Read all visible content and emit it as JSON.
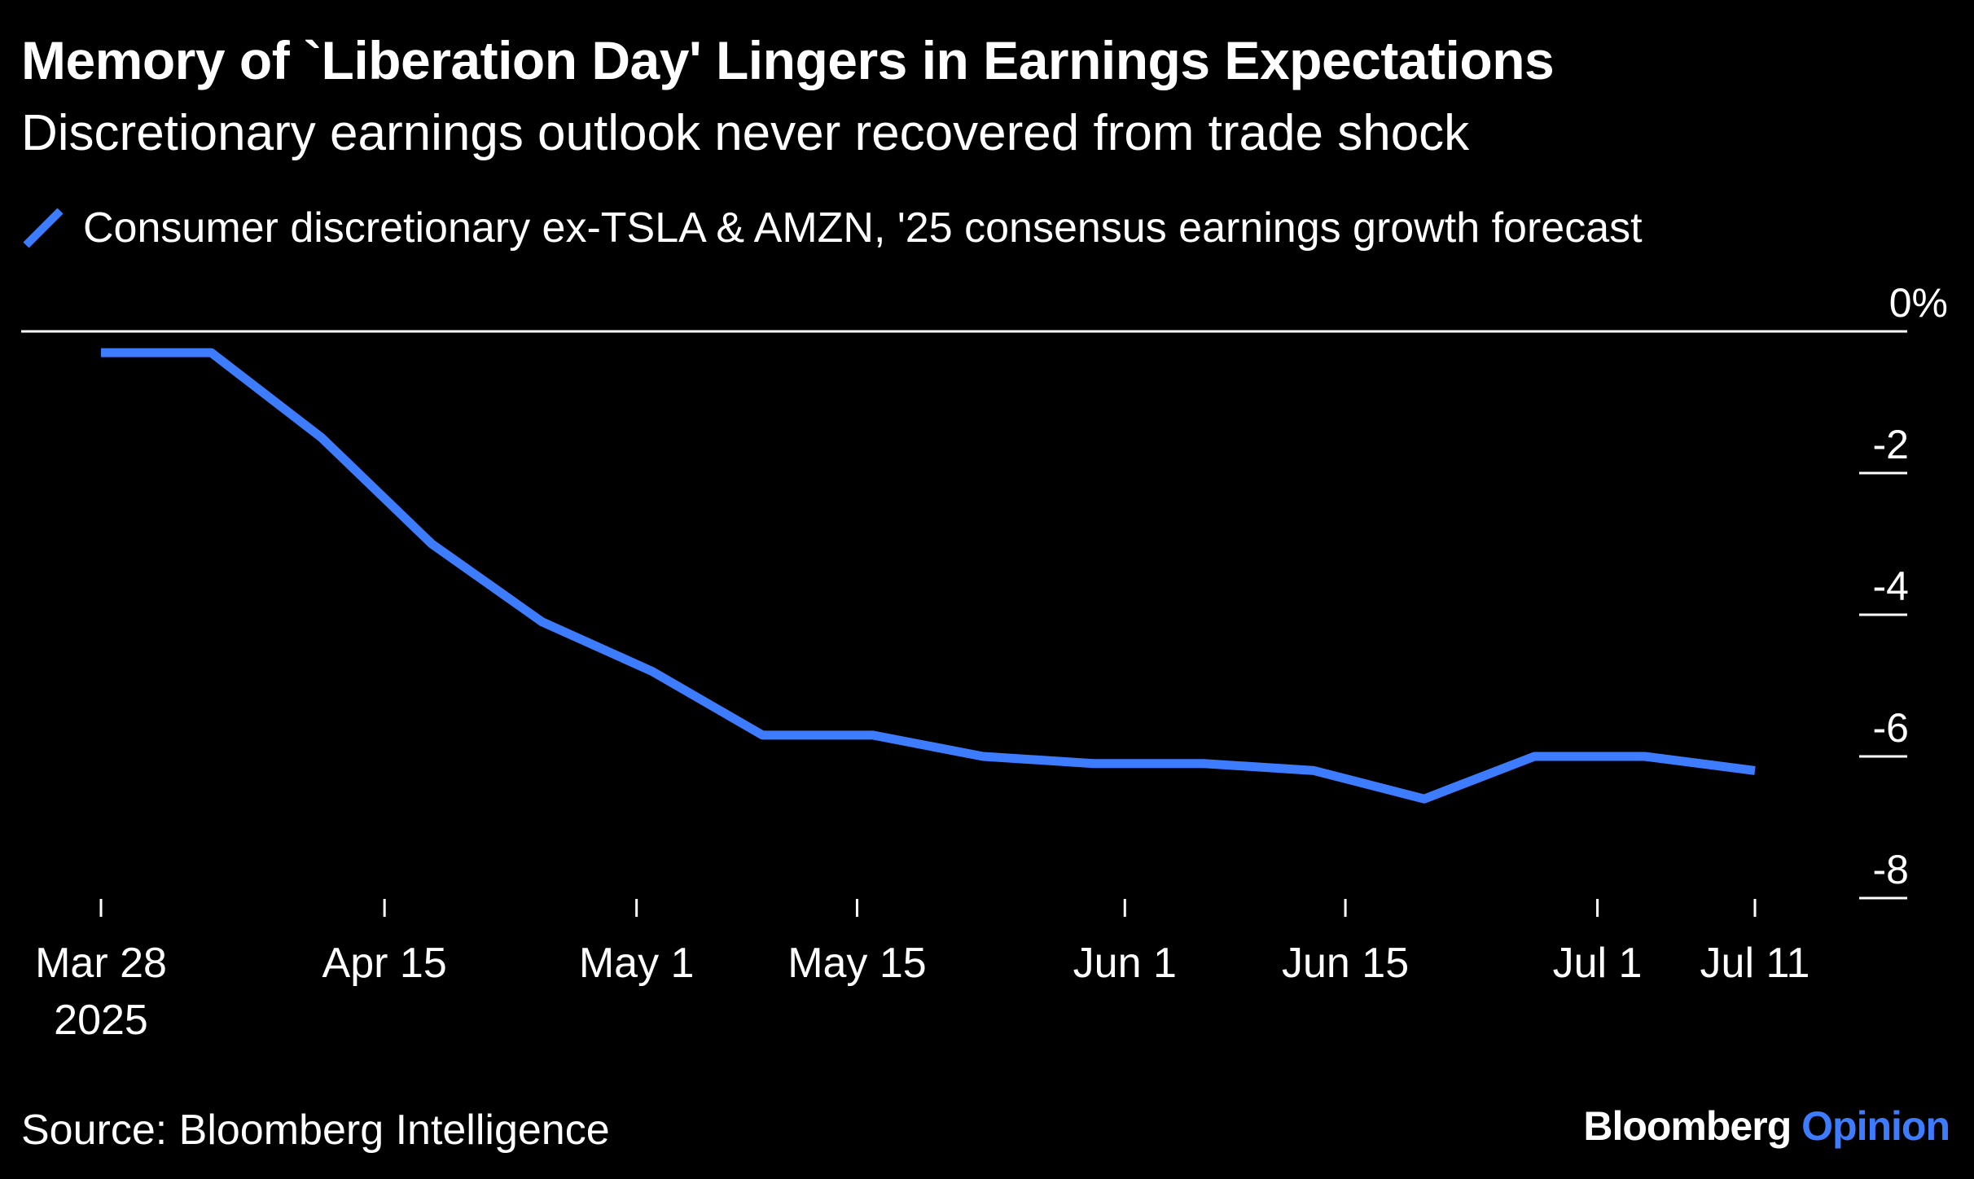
{
  "header": {
    "title": "Memory of `Liberation Day' Lingers in Earnings Expectations",
    "subtitle": "Discretionary earnings outlook never recovered from trade shock"
  },
  "footer": {
    "source": "Source: Bloomberg Intelligence",
    "brand_primary": "Bloomberg",
    "brand_secondary": "Opinion"
  },
  "colors": {
    "background": "#000000",
    "series": "#3d7cff",
    "text": "#ffffff"
  },
  "chart_data": {
    "type": "line",
    "title": "Memory of `Liberation Day' Lingers in Earnings Expectations",
    "subtitle": "Discretionary earnings outlook never recovered from trade shock",
    "xlabel": "",
    "ylabel": "",
    "legend_placement": "top-left",
    "grid": false,
    "x_tick_labels": [
      {
        "date": "2025-03-28",
        "label": "Mar 28",
        "sublabel": "2025"
      },
      {
        "date": "2025-04-15",
        "label": "Apr 15",
        "sublabel": ""
      },
      {
        "date": "2025-05-01",
        "label": "May 1",
        "sublabel": ""
      },
      {
        "date": "2025-05-15",
        "label": "May 15",
        "sublabel": ""
      },
      {
        "date": "2025-06-01",
        "label": "Jun 1",
        "sublabel": ""
      },
      {
        "date": "2025-06-15",
        "label": "Jun 15",
        "sublabel": ""
      },
      {
        "date": "2025-07-01",
        "label": "Jul 1",
        "sublabel": ""
      },
      {
        "date": "2025-07-11",
        "label": "Jul 11",
        "sublabel": ""
      }
    ],
    "xlim": [
      "2025-03-28",
      "2025-07-11"
    ],
    "y_ticks": [
      {
        "value": 0,
        "label": "0%"
      },
      {
        "value": -2,
        "label": "-2"
      },
      {
        "value": -4,
        "label": "-4"
      },
      {
        "value": -6,
        "label": "-6"
      },
      {
        "value": -8,
        "label": "-8"
      }
    ],
    "ylim": [
      -8,
      0
    ],
    "series": [
      {
        "name": "Consumer discretionary ex-TSLA & AMZN, '25 consensus earnings growth forecast",
        "color": "#3d7cff",
        "points": [
          {
            "x": "2025-03-28",
            "y": -0.3
          },
          {
            "x": "2025-04-04",
            "y": -0.3
          },
          {
            "x": "2025-04-11",
            "y": -1.5
          },
          {
            "x": "2025-04-18",
            "y": -3.0
          },
          {
            "x": "2025-04-25",
            "y": -4.1
          },
          {
            "x": "2025-05-02",
            "y": -4.8
          },
          {
            "x": "2025-05-09",
            "y": -5.7
          },
          {
            "x": "2025-05-16",
            "y": -5.7
          },
          {
            "x": "2025-05-23",
            "y": -6.0
          },
          {
            "x": "2025-05-30",
            "y": -6.1
          },
          {
            "x": "2025-06-06",
            "y": -6.1
          },
          {
            "x": "2025-06-13",
            "y": -6.2
          },
          {
            "x": "2025-06-20",
            "y": -6.6
          },
          {
            "x": "2025-06-27",
            "y": -6.0
          },
          {
            "x": "2025-07-04",
            "y": -6.0
          },
          {
            "x": "2025-07-11",
            "y": -6.2
          }
        ]
      }
    ]
  }
}
